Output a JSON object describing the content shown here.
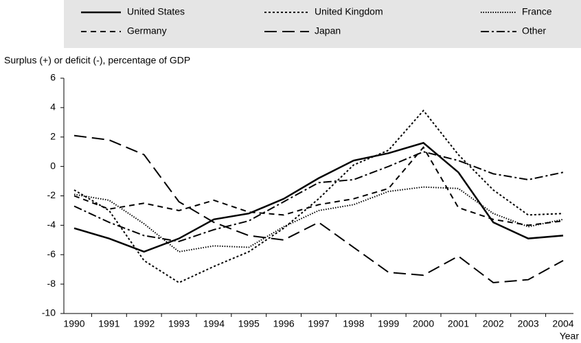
{
  "chart_data": {
    "type": "line",
    "y_axis_label": "Surplus (+) or deficit (-), percentage of GDP",
    "x_axis_label": "Year",
    "categories": [
      "1990",
      "1991",
      "1992",
      "1993",
      "1994",
      "1995",
      "1996",
      "1997",
      "1998",
      "1999",
      "2000",
      "2001",
      "2002",
      "2003",
      "2004"
    ],
    "ylim": [
      -10,
      6
    ],
    "yticks": [
      -10,
      -8,
      -6,
      -4,
      -2,
      0,
      2,
      4,
      6
    ],
    "grid": false,
    "legend_position": "top",
    "series": [
      {
        "name": "United States",
        "color": "#000000",
        "dash": "solid",
        "values": [
          -4.2,
          -4.9,
          -5.8,
          -4.9,
          -3.6,
          -3.2,
          -2.2,
          -0.8,
          0.4,
          0.9,
          1.6,
          -0.4,
          -3.8,
          -4.9,
          -4.7
        ]
      },
      {
        "name": "United Kingdom",
        "color": "#000000",
        "dash": "short-dash",
        "values": [
          -1.6,
          -3.0,
          -6.4,
          -7.9,
          -6.8,
          -5.8,
          -4.2,
          -2.2,
          0.1,
          1.1,
          3.8,
          0.8,
          -1.6,
          -3.3,
          -3.2
        ]
      },
      {
        "name": "France",
        "color": "#000000",
        "dash": "dotted",
        "values": [
          -1.9,
          -2.3,
          -3.9,
          -5.8,
          -5.4,
          -5.5,
          -4.1,
          -3.0,
          -2.6,
          -1.7,
          -1.4,
          -1.5,
          -3.2,
          -4.1,
          -3.6
        ]
      },
      {
        "name": "Germany",
        "color": "#000000",
        "dash": "dashed",
        "values": [
          -2.0,
          -2.9,
          -2.5,
          -3.0,
          -2.3,
          -3.1,
          -3.3,
          -2.6,
          -2.2,
          -1.5,
          1.3,
          -2.8,
          -3.6,
          -4.0,
          -3.7
        ]
      },
      {
        "name": "Japan",
        "color": "#000000",
        "dash": "long-dash",
        "values": [
          2.1,
          1.8,
          0.8,
          -2.4,
          -3.8,
          -4.7,
          -5.0,
          -3.8,
          -5.5,
          -7.2,
          -7.4,
          -6.1,
          -7.9,
          -7.7,
          -6.4
        ]
      },
      {
        "name": "Other",
        "color": "#000000",
        "dash": "dash-dot",
        "values": [
          -2.7,
          -3.8,
          -4.7,
          -5.1,
          -4.3,
          -3.7,
          -2.4,
          -1.1,
          -0.9,
          0.0,
          1.0,
          0.4,
          -0.5,
          -0.9,
          -0.4
        ]
      }
    ]
  }
}
